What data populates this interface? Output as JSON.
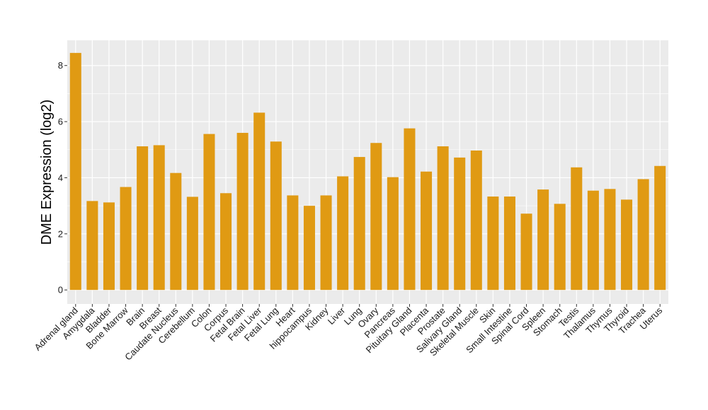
{
  "chart_data": {
    "type": "bar",
    "title": "",
    "xlabel": "",
    "ylabel": "DME Expression (log2)",
    "ylim": [
      -0.5,
      8.9
    ],
    "yticks": [
      0,
      2,
      4,
      6,
      8
    ],
    "grid": true,
    "bar_color": "#E09A13",
    "panel_color": "#EBEBEB",
    "gridline_color": "#FFFFFF",
    "categories": [
      "Adrenal gland",
      "Amygdala",
      "Bladder",
      "Bone Marrow",
      "Brain",
      "Breast",
      "Caudate Nucleus",
      "Cerebellum",
      "Colon",
      "Corpus",
      "Fetal Brain",
      "Fetal Liver",
      "Fetal Lung",
      "Heart",
      "hippocampus",
      "Kidney",
      "Liver",
      "Lung",
      "Ovary",
      "Pancreas",
      "Pituitary Gland",
      "Placenta",
      "Prostate",
      "Salivary Gland",
      "Skeletal Muscle",
      "Skin",
      "Small Intestine",
      "Spinal Cord",
      "Spleen",
      "Stomach",
      "Testis",
      "Thalamus",
      "Thymus",
      "Thyroid",
      "Trachea",
      "Uterus"
    ],
    "values": [
      8.45,
      3.17,
      3.12,
      3.67,
      5.12,
      5.16,
      4.17,
      3.32,
      5.56,
      3.45,
      5.6,
      6.32,
      5.29,
      3.37,
      3.0,
      3.37,
      4.05,
      4.74,
      5.24,
      4.02,
      5.76,
      4.22,
      5.12,
      4.72,
      4.97,
      3.33,
      3.33,
      2.72,
      3.58,
      3.07,
      4.37,
      3.54,
      3.6,
      3.22,
      3.95,
      4.42
    ]
  }
}
